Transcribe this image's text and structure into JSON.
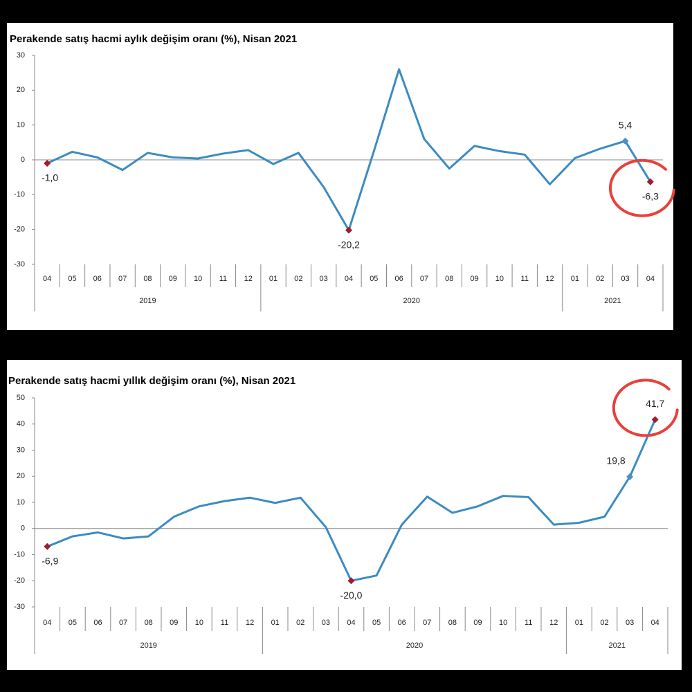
{
  "chart_data": [
    {
      "type": "line",
      "title": "Perakende satış hacmi aylık değişim oranı (%), Nisan 2021",
      "categories": [
        "04",
        "05",
        "06",
        "07",
        "08",
        "09",
        "10",
        "11",
        "12",
        "01",
        "02",
        "03",
        "04",
        "05",
        "06",
        "07",
        "08",
        "09",
        "10",
        "11",
        "12",
        "01",
        "02",
        "03",
        "04"
      ],
      "year_labels": [
        "2019",
        null,
        null,
        null,
        null,
        null,
        null,
        null,
        null,
        "2020",
        null,
        null,
        null,
        null,
        null,
        null,
        null,
        null,
        null,
        null,
        null,
        "2021",
        null,
        null,
        null
      ],
      "series": [
        {
          "color": "#3b8bc2",
          "values": [
            -1.0,
            2.3,
            0.7,
            -2.9,
            2.0,
            0.7,
            0.4,
            1.8,
            2.8,
            -1.2,
            2.0,
            -7.8,
            -20.2,
            2.5,
            26.0,
            6.0,
            -2.5,
            4.0,
            2.5,
            1.5,
            -7.0,
            0.5,
            3.2,
            5.4,
            -6.3
          ],
          "value_labels": [
            "-1,0",
            null,
            null,
            null,
            null,
            null,
            null,
            null,
            null,
            null,
            null,
            null,
            "-20,2",
            null,
            null,
            null,
            null,
            null,
            null,
            null,
            null,
            null,
            null,
            "5,4",
            "-6,3"
          ],
          "marker_colors": [
            "#a01c2c",
            null,
            null,
            null,
            null,
            null,
            null,
            null,
            null,
            null,
            null,
            null,
            "#a01c2c",
            null,
            null,
            null,
            null,
            null,
            null,
            null,
            null,
            null,
            null,
            "#4b8fc6",
            "#a01c2c"
          ]
        }
      ],
      "ylim": [
        -30,
        30
      ],
      "yticks": [
        -30,
        -20,
        -10,
        0,
        10,
        20,
        30
      ]
    },
    {
      "type": "line",
      "title": "Perakende satış hacmi yıllık değişim oranı (%), Nisan 2021",
      "categories": [
        "04",
        "05",
        "06",
        "07",
        "08",
        "09",
        "10",
        "11",
        "12",
        "01",
        "02",
        "03",
        "04",
        "05",
        "06",
        "07",
        "08",
        "09",
        "10",
        "11",
        "12",
        "01",
        "02",
        "03",
        "04"
      ],
      "year_labels": [
        "2019",
        null,
        null,
        null,
        null,
        null,
        null,
        null,
        null,
        "2020",
        null,
        null,
        null,
        null,
        null,
        null,
        null,
        null,
        null,
        null,
        null,
        "2021",
        null,
        null,
        null
      ],
      "series": [
        {
          "color": "#3b8bc2",
          "values": [
            -6.9,
            -3.0,
            -1.5,
            -3.8,
            -3.0,
            4.5,
            8.5,
            10.5,
            11.8,
            9.8,
            11.8,
            0.5,
            -20.0,
            -18.0,
            1.5,
            12.2,
            6.0,
            8.5,
            12.5,
            12.0,
            1.5,
            2.2,
            4.5,
            19.8,
            41.7
          ],
          "value_labels": [
            "-6,9",
            null,
            null,
            null,
            null,
            null,
            null,
            null,
            null,
            null,
            null,
            null,
            "-20,0",
            null,
            null,
            null,
            null,
            null,
            null,
            null,
            null,
            null,
            null,
            "19,8",
            "41,7"
          ],
          "marker_colors": [
            "#a01c2c",
            null,
            null,
            null,
            null,
            null,
            null,
            null,
            null,
            null,
            null,
            null,
            "#a01c2c",
            null,
            null,
            null,
            null,
            null,
            null,
            null,
            null,
            null,
            null,
            "#4b8fc6",
            "#a01c2c"
          ]
        }
      ],
      "ylim": [
        -30,
        50
      ],
      "yticks": [
        -30,
        -20,
        -10,
        0,
        10,
        20,
        30,
        40,
        50
      ]
    }
  ]
}
